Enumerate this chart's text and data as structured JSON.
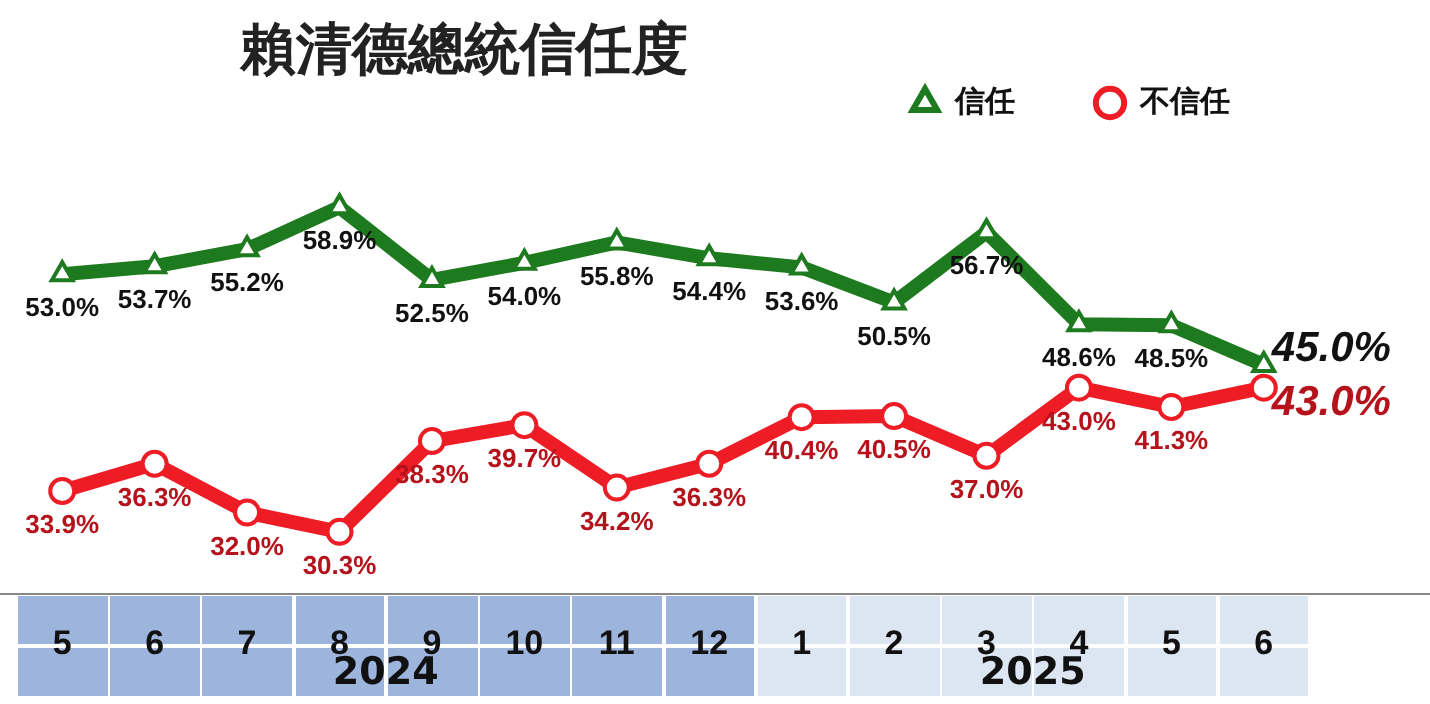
{
  "chart_data": {
    "type": "line",
    "title": "賴清德總統信任度",
    "categories": [
      "5",
      "6",
      "7",
      "8",
      "9",
      "10",
      "11",
      "12",
      "1",
      "2",
      "3",
      "4",
      "5",
      "6"
    ],
    "series": [
      {
        "name": "信任",
        "color": "#1e7a1e",
        "marker": "triangle",
        "values": [
          53.0,
          53.7,
          55.2,
          58.9,
          52.5,
          54.0,
          55.8,
          54.4,
          53.6,
          50.5,
          56.7,
          48.6,
          48.5,
          45.0
        ],
        "value_labels": [
          "53.0%",
          "53.7%",
          "55.2%",
          "58.9%",
          "52.5%",
          "54.0%",
          "55.8%",
          "54.4%",
          "53.6%",
          "50.5%",
          "56.7%",
          "48.6%",
          "48.5%",
          "45.0%"
        ]
      },
      {
        "name": "不信任",
        "color": "#ee1c25",
        "marker": "circle",
        "values": [
          33.9,
          36.3,
          32.0,
          30.3,
          38.3,
          39.7,
          34.2,
          36.3,
          40.4,
          40.5,
          37.0,
          43.0,
          41.3,
          43.0
        ],
        "value_labels": [
          "33.9%",
          "36.3%",
          "32.0%",
          "30.3%",
          "38.3%",
          "39.7%",
          "34.2%",
          "36.3%",
          "40.4%",
          "40.5%",
          "37.0%",
          "43.0%",
          "41.3%",
          "43.0%"
        ]
      }
    ],
    "tick_labels": "x",
    "legend": "top right",
    "annotations": [
      "2024",
      "2025"
    ]
  }
}
